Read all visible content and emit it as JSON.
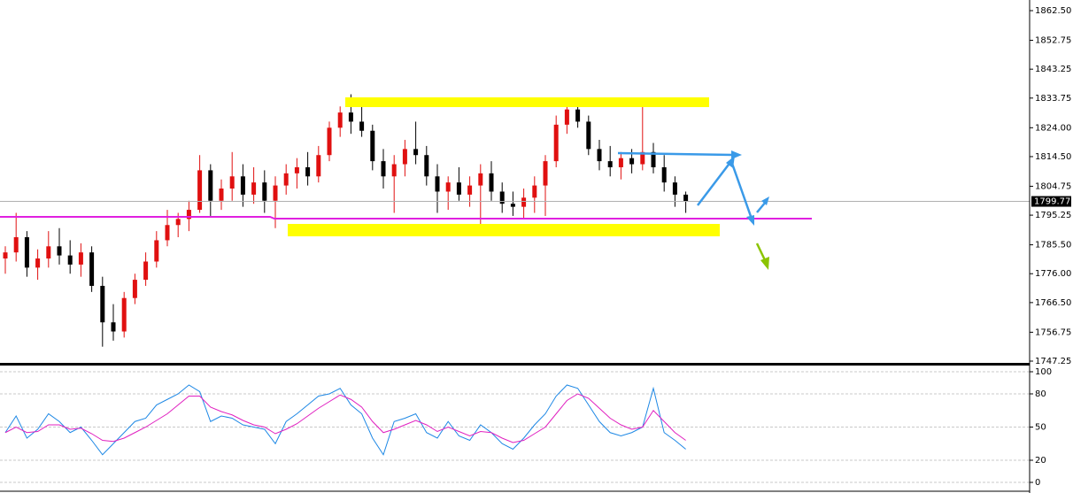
{
  "chart_data": [
    {
      "type": "candlestick",
      "candles": [
        [
          1781,
          1785,
          1776,
          1783
        ],
        [
          1783,
          1796,
          1780,
          1788
        ],
        [
          1788,
          1790,
          1775,
          1778
        ],
        [
          1778,
          1784,
          1774,
          1781
        ],
        [
          1781,
          1790,
          1778,
          1785
        ],
        [
          1785,
          1791,
          1779,
          1782
        ],
        [
          1782,
          1787,
          1776,
          1779
        ],
        [
          1779,
          1786,
          1775,
          1783
        ],
        [
          1783,
          1785,
          1770,
          1772
        ],
        [
          1772,
          1775,
          1752,
          1760
        ],
        [
          1760,
          1766,
          1754,
          1757
        ],
        [
          1757,
          1770,
          1755,
          1768
        ],
        [
          1768,
          1776,
          1766,
          1774
        ],
        [
          1774,
          1783,
          1772,
          1780
        ],
        [
          1780,
          1790,
          1778,
          1787
        ],
        [
          1787,
          1797,
          1785,
          1792
        ],
        [
          1792,
          1796,
          1788,
          1794
        ],
        [
          1794,
          1800,
          1790,
          1797
        ],
        [
          1797,
          1815,
          1796,
          1810
        ],
        [
          1810,
          1812,
          1795,
          1800
        ],
        [
          1800,
          1807,
          1797,
          1804
        ],
        [
          1804,
          1816,
          1800,
          1808
        ],
        [
          1808,
          1812,
          1798,
          1802
        ],
        [
          1802,
          1811,
          1799,
          1806
        ],
        [
          1806,
          1810,
          1796,
          1800
        ],
        [
          1800,
          1808,
          1791,
          1805
        ],
        [
          1805,
          1812,
          1802,
          1809
        ],
        [
          1809,
          1814,
          1804,
          1811
        ],
        [
          1811,
          1816,
          1805,
          1808
        ],
        [
          1808,
          1818,
          1806,
          1815
        ],
        [
          1815,
          1826,
          1813,
          1824
        ],
        [
          1824,
          1831,
          1821,
          1829
        ],
        [
          1829,
          1835,
          1822,
          1826
        ],
        [
          1826,
          1832,
          1821,
          1823
        ],
        [
          1823,
          1825,
          1810,
          1813
        ],
        [
          1813,
          1817,
          1804,
          1808
        ],
        [
          1808,
          1815,
          1796,
          1812
        ],
        [
          1812,
          1820,
          1808,
          1817
        ],
        [
          1817,
          1826,
          1812,
          1815
        ],
        [
          1815,
          1818,
          1805,
          1808
        ],
        [
          1808,
          1812,
          1796,
          1803
        ],
        [
          1803,
          1808,
          1797,
          1806
        ],
        [
          1806,
          1811,
          1800,
          1802
        ],
        [
          1802,
          1808,
          1798,
          1805
        ],
        [
          1805,
          1812,
          1790,
          1809
        ],
        [
          1809,
          1813,
          1800,
          1803
        ],
        [
          1803,
          1806,
          1796,
          1799
        ],
        [
          1799,
          1803,
          1795,
          1798
        ],
        [
          1798,
          1804,
          1794,
          1801
        ],
        [
          1801,
          1808,
          1796,
          1805
        ],
        [
          1805,
          1815,
          1795,
          1813
        ],
        [
          1813,
          1828,
          1811,
          1825
        ],
        [
          1825,
          1833,
          1822,
          1830
        ],
        [
          1830,
          1832,
          1824,
          1826
        ],
        [
          1826,
          1828,
          1815,
          1817
        ],
        [
          1817,
          1820,
          1810,
          1813
        ],
        [
          1813,
          1818,
          1808,
          1811
        ],
        [
          1811,
          1816,
          1807,
          1814
        ],
        [
          1814,
          1817,
          1809,
          1812
        ],
        [
          1812,
          1833,
          1810,
          1816
        ],
        [
          1816,
          1819,
          1809,
          1811
        ],
        [
          1811,
          1815,
          1803,
          1806
        ],
        [
          1806,
          1808,
          1798,
          1802
        ],
        [
          1802,
          1803,
          1796,
          1799.77
        ]
      ],
      "up_color": "#e01010",
      "down_color": "#000000",
      "ylim": [
        1746.67,
        1866.0
      ],
      "yticks": [
        {
          "value": 1862.5,
          "label": "1862.50"
        },
        1852.75,
        1843.25,
        1833.75,
        {
          "value": 1824,
          "label": "1824.00"
        },
        {
          "value": 1814.5,
          "label": "1814.50"
        },
        1804.75,
        1795.25,
        {
          "value": 1785.5,
          "label": "1785.50"
        },
        {
          "value": 1776,
          "label": "1776.00"
        },
        {
          "value": 1766.5,
          "label": "1766.50"
        },
        1756.75,
        1747.25
      ],
      "current_price": 1799.77
    },
    {
      "type": "line",
      "series": [
        {
          "color": "#1e88e5",
          "values": [
            45,
            60,
            40,
            48,
            62,
            55,
            45,
            50,
            38,
            25,
            35,
            45,
            55,
            58,
            70,
            75,
            80,
            88,
            82,
            55,
            60,
            58,
            52,
            50,
            48,
            35,
            55,
            62,
            70,
            78,
            80,
            85,
            70,
            62,
            40,
            25,
            55,
            58,
            62,
            45,
            40,
            55,
            42,
            38,
            52,
            45,
            35,
            30,
            40,
            52,
            62,
            78,
            88,
            85,
            70,
            55,
            45,
            42,
            45,
            50,
            85,
            45,
            38,
            30
          ]
        },
        {
          "color": "#e020c0",
          "values": [
            45,
            50,
            45,
            46,
            52,
            52,
            48,
            49,
            44,
            38,
            37,
            40,
            45,
            50,
            56,
            62,
            70,
            78,
            78,
            68,
            64,
            61,
            56,
            52,
            50,
            44,
            48,
            53,
            60,
            67,
            73,
            79,
            75,
            68,
            55,
            45,
            48,
            52,
            56,
            52,
            46,
            50,
            46,
            42,
            46,
            45,
            40,
            36,
            38,
            44,
            50,
            62,
            74,
            80,
            76,
            67,
            58,
            52,
            48,
            50,
            65,
            55,
            45,
            38
          ]
        }
      ],
      "ylim": [
        -8,
        105.6
      ],
      "yticks": [
        100,
        80,
        50,
        20,
        0
      ]
    }
  ]
}
